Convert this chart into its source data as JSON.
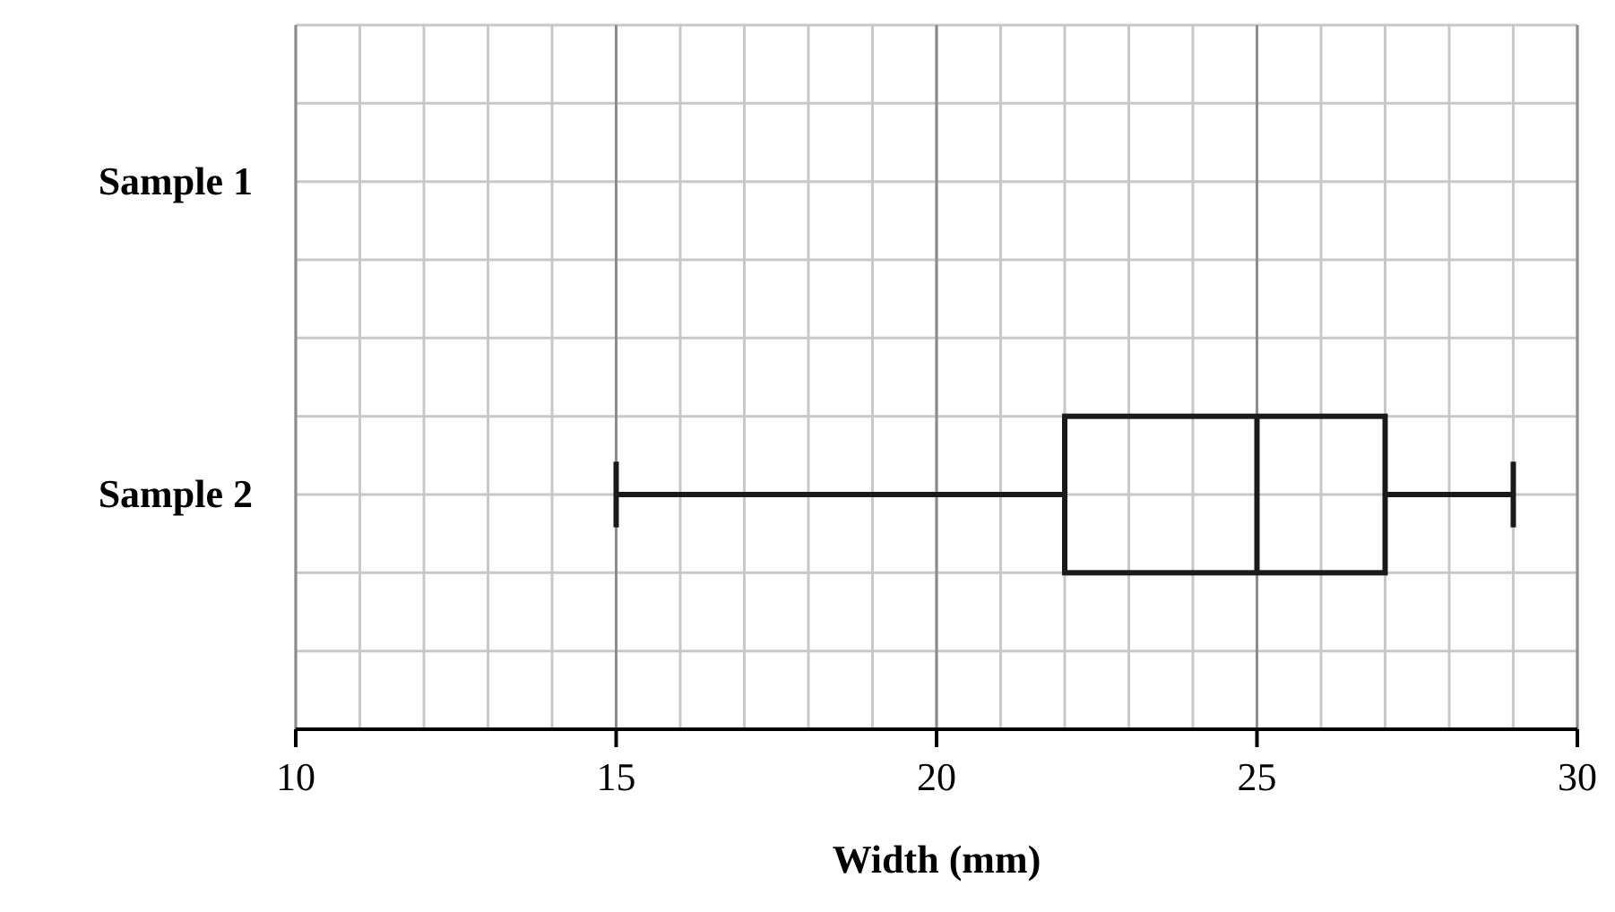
{
  "chart_data": {
    "type": "box",
    "orientation": "horizontal",
    "categories": [
      "Sample 1",
      "Sample 2"
    ],
    "boxes": [
      null,
      {
        "low": 15,
        "q1": 22,
        "median": 25,
        "q3": 27,
        "high": 29
      }
    ],
    "xlabel": "Width (mm)",
    "xlim": [
      10,
      30
    ],
    "xticks": [
      10,
      15,
      20,
      25,
      30
    ],
    "grid": true
  }
}
